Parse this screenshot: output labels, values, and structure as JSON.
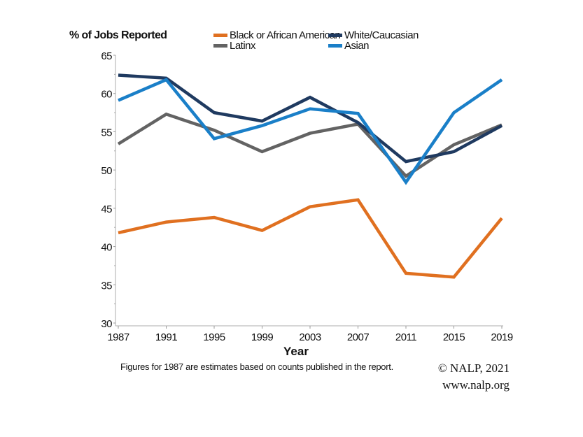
{
  "chart_data": {
    "type": "line",
    "title": "",
    "ylabel": "% of Jobs Reported",
    "xlabel": "Year",
    "x": [
      1987,
      1991,
      1995,
      1999,
      2003,
      2007,
      2011,
      2015,
      2019
    ],
    "x_tick_labels": [
      "1987",
      "1991",
      "1995",
      "1999",
      "2003",
      "2007",
      "2011",
      "2015",
      "2019"
    ],
    "ylim": [
      30,
      65
    ],
    "y_ticks": [
      30,
      35,
      40,
      45,
      50,
      55,
      60,
      65
    ],
    "y_tick_labels": [
      "30",
      "35",
      "40",
      "45",
      "50",
      "55",
      "60",
      "65"
    ],
    "y_minor_step": 2.5,
    "grid": false,
    "legend_position": "top-right",
    "series": [
      {
        "name": "Black or African American",
        "color": "#e07020",
        "values": [
          41.8,
          43.2,
          43.8,
          42.1,
          45.2,
          46.1,
          36.5,
          36.0,
          43.7
        ]
      },
      {
        "name": "White/Caucasian",
        "color": "#1f3a60",
        "values": [
          62.4,
          62.0,
          57.5,
          56.4,
          59.5,
          56.2,
          51.1,
          52.4,
          55.8
        ]
      },
      {
        "name": "Latinx",
        "color": "#636363",
        "values": [
          53.4,
          57.3,
          55.2,
          52.4,
          54.8,
          56.0,
          49.2,
          53.3,
          55.9
        ]
      },
      {
        "name": "Asian",
        "color": "#1a7fc8",
        "values": [
          59.1,
          61.8,
          54.1,
          55.8,
          58.0,
          57.4,
          48.4,
          57.5,
          61.8
        ]
      }
    ],
    "legend_order": [
      0,
      1,
      2,
      3
    ],
    "footnote": "Figures for 1987 are estimates based on counts published in the report.",
    "credit_line1": "© NALP, 2021",
    "credit_line2": "www.nalp.org"
  }
}
